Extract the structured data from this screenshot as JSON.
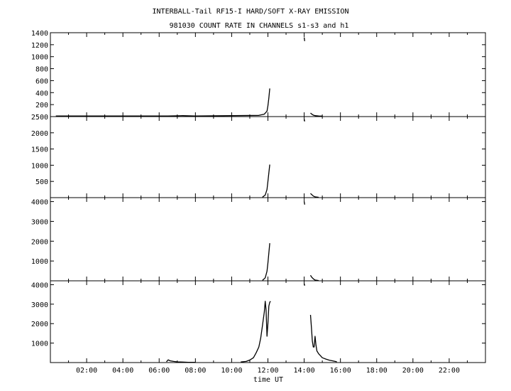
{
  "title_line1": "INTERBALL-Tail RF15-I HARD/SOFT X-RAY EMISSION",
  "title_line2": "981030  COUNT RATE IN CHANNELS s1-s3 and h1",
  "chart_data": [
    {
      "type": "line",
      "panel": 1,
      "xlim": [
        0,
        24
      ],
      "ylim": [
        0,
        1400
      ],
      "yticks": [
        200,
        400,
        600,
        800,
        1000,
        1200,
        1400
      ],
      "ytick_labels": [
        "200",
        "400",
        "600",
        "800",
        "1000",
        "1200",
        "1400"
      ],
      "segments": [
        {
          "x": [
            0.3,
            6.5,
            7.3,
            8.0,
            11.5,
            11.8,
            11.95,
            12.0,
            12.05,
            12.1
          ],
          "y": [
            10,
            10,
            15,
            10,
            20,
            40,
            90,
            180,
            310,
            470
          ]
        },
        {
          "x": [
            14.0,
            14.03
          ],
          "y": [
            1320,
            1260
          ]
        },
        {
          "x": [
            14.35,
            14.4,
            14.5,
            14.6,
            14.8,
            15.0
          ],
          "y": [
            60,
            45,
            25,
            15,
            10,
            8
          ]
        }
      ]
    },
    {
      "type": "line",
      "panel": 2,
      "xlim": [
        0,
        24
      ],
      "ylim": [
        0,
        2500
      ],
      "yticks": [
        500,
        1000,
        1500,
        2000,
        2500
      ],
      "ytick_labels": [
        "500",
        "1000",
        "1500",
        "2000",
        "2500"
      ],
      "segments": [
        {
          "x": [
            11.7,
            11.85,
            11.95,
            12.0,
            12.05,
            12.1
          ],
          "y": [
            15,
            80,
            250,
            500,
            760,
            1020
          ]
        },
        {
          "x": [
            14.0,
            14.03
          ],
          "y": [
            2420,
            2350
          ]
        },
        {
          "x": [
            14.35,
            14.4,
            14.5,
            14.6,
            14.8
          ],
          "y": [
            130,
            100,
            50,
            25,
            10
          ]
        }
      ]
    },
    {
      "type": "line",
      "panel": 3,
      "xlim": [
        0,
        24
      ],
      "ylim": [
        0,
        4200
      ],
      "yticks": [
        1000,
        2000,
        3000,
        4000
      ],
      "ytick_labels": [
        "1000",
        "2000",
        "3000",
        "4000"
      ],
      "segments": [
        {
          "x": [
            11.7,
            11.85,
            11.95,
            12.0,
            12.05,
            12.1
          ],
          "y": [
            20,
            150,
            480,
            900,
            1400,
            1900
          ]
        },
        {
          "x": [
            14.0,
            14.03
          ],
          "y": [
            4000,
            3850
          ]
        },
        {
          "x": [
            14.35,
            14.4,
            14.5,
            14.6,
            14.8
          ],
          "y": [
            280,
            200,
            100,
            40,
            15
          ]
        }
      ]
    },
    {
      "type": "line",
      "panel": 4,
      "xlim": [
        0,
        24
      ],
      "ylim": [
        0,
        4200
      ],
      "yticks": [
        1000,
        2000,
        3000,
        4000
      ],
      "ytick_labels": [
        "1000",
        "2000",
        "3000",
        "4000"
      ],
      "xticks": [
        2,
        4,
        6,
        8,
        10,
        12,
        14,
        16,
        18,
        20,
        22
      ],
      "xtick_labels": [
        "02:00",
        "04:00",
        "06:00",
        "08:00",
        "10:00",
        "12:00",
        "14:00",
        "16:00",
        "18:00",
        "20:00",
        "22:00"
      ],
      "xlabel": "time UT",
      "segments": [
        {
          "x": [
            6.4,
            6.5,
            6.6,
            6.8,
            7.0,
            7.3,
            7.6,
            8.0
          ],
          "y": [
            40,
            140,
            90,
            60,
            35,
            25,
            15,
            10
          ]
        },
        {
          "x": [
            10.5,
            10.8,
            11.0,
            11.2,
            11.35,
            11.5,
            11.6,
            11.7,
            11.8,
            11.85,
            11.9,
            11.95,
            12.0,
            12.05,
            12.1,
            12.15
          ],
          "y": [
            30,
            60,
            130,
            250,
            500,
            800,
            1250,
            1900,
            2600,
            3150,
            2700,
            1350,
            2000,
            2900,
            3100,
            3150
          ]
        },
        {
          "x": [
            14.0,
            14.03
          ],
          "y": [
            4050,
            3950
          ]
        },
        {
          "x": [
            14.35,
            14.4,
            14.45,
            14.5,
            14.55,
            14.6,
            14.65,
            14.7,
            14.8,
            14.9,
            15.0,
            15.2,
            15.4,
            15.6,
            15.8
          ],
          "y": [
            2450,
            1800,
            1100,
            800,
            800,
            1350,
            900,
            600,
            450,
            350,
            250,
            180,
            120,
            80,
            40
          ]
        }
      ]
    }
  ]
}
